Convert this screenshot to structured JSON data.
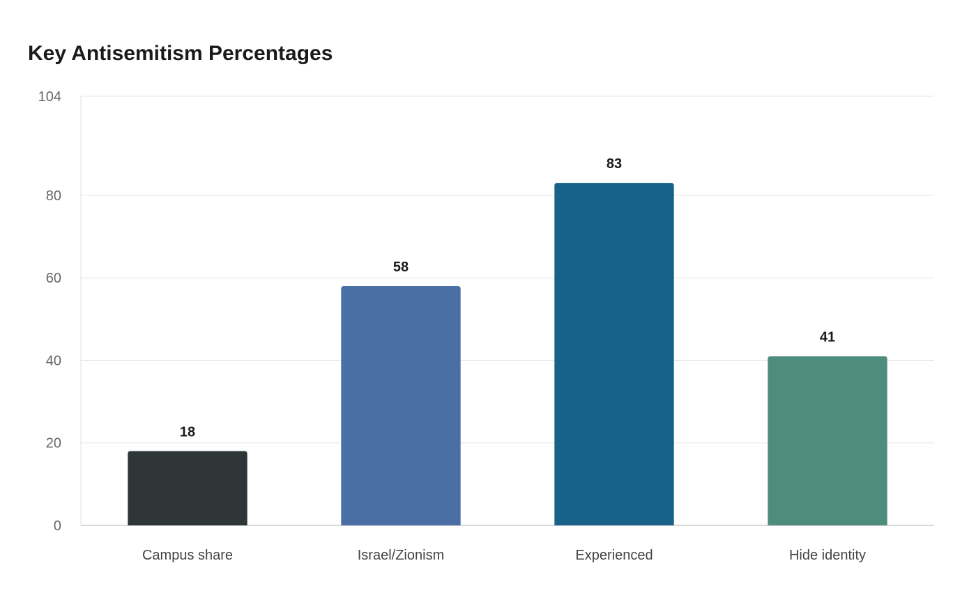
{
  "chart_data": {
    "type": "bar",
    "title": "Key Antisemitism Percentages",
    "xlabel": "",
    "ylabel": "",
    "categories": [
      "Campus share",
      "Israel/Zionism",
      "Experienced",
      "Hide identity"
    ],
    "values": [
      18,
      58,
      83,
      41
    ],
    "data_labels": [
      "18",
      "58",
      "83",
      "41"
    ],
    "colors": [
      "#2e3638",
      "#4a6fa5",
      "#186289",
      "#4e8c7b"
    ],
    "ylim": [
      0,
      104
    ],
    "yticks": [
      0,
      20,
      40,
      60,
      80,
      104
    ],
    "grid": true,
    "legend": "none"
  }
}
